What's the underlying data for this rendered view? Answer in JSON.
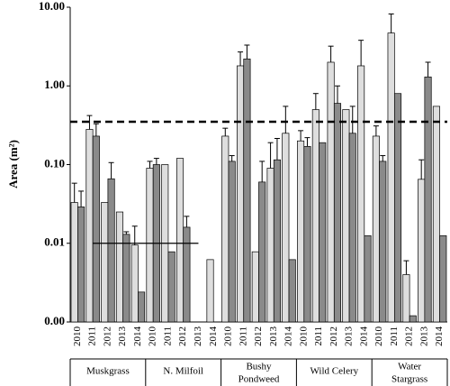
{
  "chart_data": {
    "type": "bar",
    "y_label": "Area (m²)",
    "ylim": [
      0.001,
      10
    ],
    "log_y": true,
    "yticks": [
      {
        "value": 0.001,
        "label": "0.00"
      },
      {
        "value": 0.01,
        "label": "0.01"
      },
      {
        "value": 0.1,
        "label": "0.10"
      },
      {
        "value": 1,
        "label": "1.00"
      },
      {
        "value": 10,
        "label": "10.00"
      }
    ],
    "categories": [
      "2010",
      "2011",
      "2012",
      "2013",
      "2014",
      "2010",
      "2011",
      "2012",
      "2013",
      "2014",
      "2010",
      "2011",
      "2012",
      "2013",
      "2014",
      "2010",
      "2011",
      "2012",
      "2013",
      "2014",
      "2010",
      "2011",
      "2012",
      "2013",
      "2014"
    ],
    "groups": [
      [
        "Muskgrass"
      ],
      [
        "N. Milfoil"
      ],
      [
        "Bushy",
        "Pondweed"
      ],
      [
        "Wild Celery"
      ],
      [
        "Water",
        "Stargrass"
      ]
    ],
    "series": [
      {
        "color": "#dedede",
        "values": [
          0.033,
          0.28,
          0.033,
          0.025,
          0.0095,
          0.09,
          0.1,
          0.12,
          null,
          0.0062,
          0.23,
          1.8,
          0.0078,
          0.09,
          0.25,
          0.2,
          0.5,
          2.0,
          0.5,
          1.8,
          0.23,
          4.7,
          0.004,
          0.065,
          0.55
        ],
        "errors": [
          0.025,
          0.14,
          null,
          null,
          0.007,
          0.02,
          null,
          null,
          null,
          null,
          0.06,
          0.9,
          null,
          0.1,
          0.3,
          0.07,
          0.3,
          1.2,
          null,
          2.0,
          0.08,
          3.5,
          0.002,
          0.05,
          null
        ]
      },
      {
        "color": "#8a8a8a",
        "values": [
          0.029,
          0.23,
          0.066,
          0.013,
          0.0024,
          0.1,
          0.0078,
          0.016,
          null,
          null,
          0.11,
          2.2,
          0.06,
          0.115,
          0.0062,
          0.17,
          0.19,
          0.6,
          0.25,
          0.0125,
          0.11,
          0.8,
          0.0012,
          1.3,
          0.0125
        ],
        "errors": [
          0.017,
          0.1,
          0.04,
          0.001,
          null,
          0.02,
          null,
          0.006,
          null,
          null,
          0.02,
          1.1,
          0.05,
          0.1,
          null,
          0.05,
          null,
          0.4,
          0.3,
          null,
          0.02,
          null,
          null,
          0.7,
          null
        ]
      }
    ],
    "reference_lines": [
      {
        "value": 0.35,
        "style": "dashed"
      },
      {
        "value": 0.01,
        "style": "solid",
        "categories_span": [
          1,
          8
        ]
      }
    ]
  }
}
